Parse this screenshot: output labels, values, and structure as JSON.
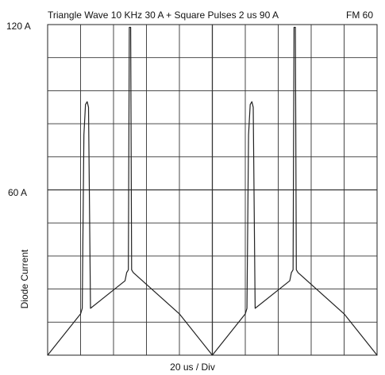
{
  "chart_data": {
    "type": "line",
    "title": "Triangle Wave 10 KHz 30 A + Square Pulses 2 us 90 A",
    "subtitle": "FM 60",
    "xlabel": "20 us / Div",
    "ylabel": "Diode Current",
    "y_tick_labels": [
      "120 A",
      "60 A"
    ],
    "x_unit": "us",
    "y_unit": "A",
    "xlim": [
      0,
      200
    ],
    "ylim": [
      0,
      120
    ],
    "grid": true,
    "series": [
      {
        "color": "#222222",
        "x": [
          0,
          20,
          21,
          22,
          23,
          24,
          24.8,
          26,
          47,
          48,
          49,
          49.6,
          50.4,
          51,
          52,
          80,
          100,
          120,
          121,
          122,
          123,
          124,
          124.8,
          126,
          147,
          148,
          149,
          149.6,
          150.4,
          151,
          152,
          180,
          200
        ],
        "y": [
          0,
          15,
          17,
          80,
          91,
          92,
          90,
          17,
          27,
          30,
          31,
          119,
          119,
          31,
          30,
          15,
          0,
          15,
          17,
          80,
          91,
          92,
          90,
          17,
          27,
          30,
          31,
          119,
          119,
          31,
          30,
          15,
          0
        ]
      }
    ]
  }
}
